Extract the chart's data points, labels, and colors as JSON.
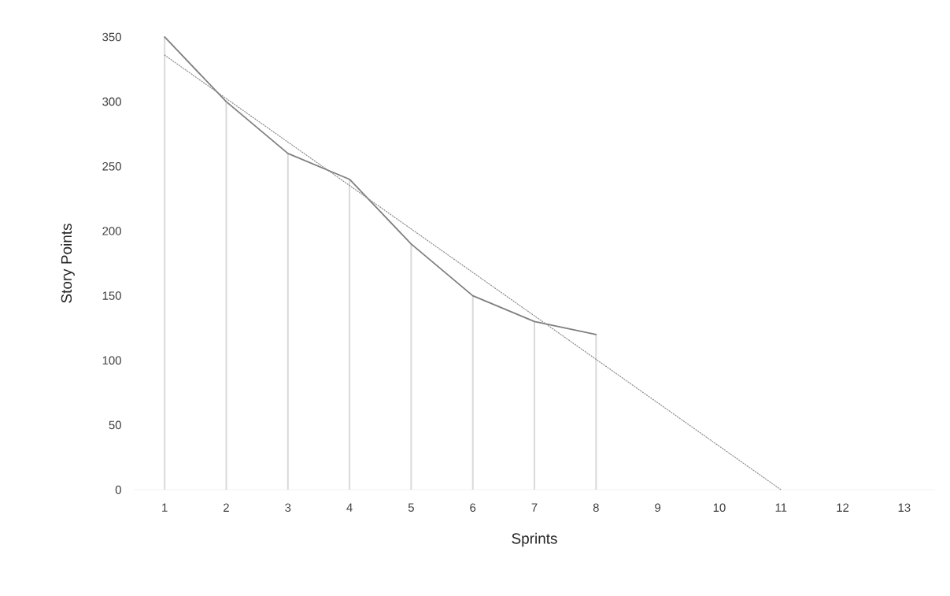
{
  "chart_data": {
    "type": "line",
    "xlabel": "Sprints",
    "ylabel": "Story Points",
    "x": [
      1,
      2,
      3,
      4,
      5,
      6,
      7,
      8
    ],
    "series": [
      {
        "type": "bar",
        "color": "#d9d9d9",
        "values": [
          350,
          300,
          260,
          240,
          190,
          150,
          130,
          120
        ]
      },
      {
        "color": "#7f7f7f",
        "values": [
          350,
          300,
          260,
          240,
          190,
          150,
          130,
          120
        ]
      },
      {
        "type": "line",
        "x": [
          1,
          11
        ],
        "values": [
          336,
          0
        ],
        "color": "#8c8c8c",
        "line_style": "dotted"
      }
    ],
    "xlim": [
      0.5,
      13.5
    ],
    "xticks": [
      1,
      2,
      3,
      4,
      5,
      6,
      7,
      8,
      9,
      10,
      11,
      12,
      13
    ],
    "ylim": [
      0,
      350
    ],
    "yticks": [
      0,
      50,
      100,
      150,
      200,
      250,
      300,
      350
    ],
    "marker": "none"
  }
}
